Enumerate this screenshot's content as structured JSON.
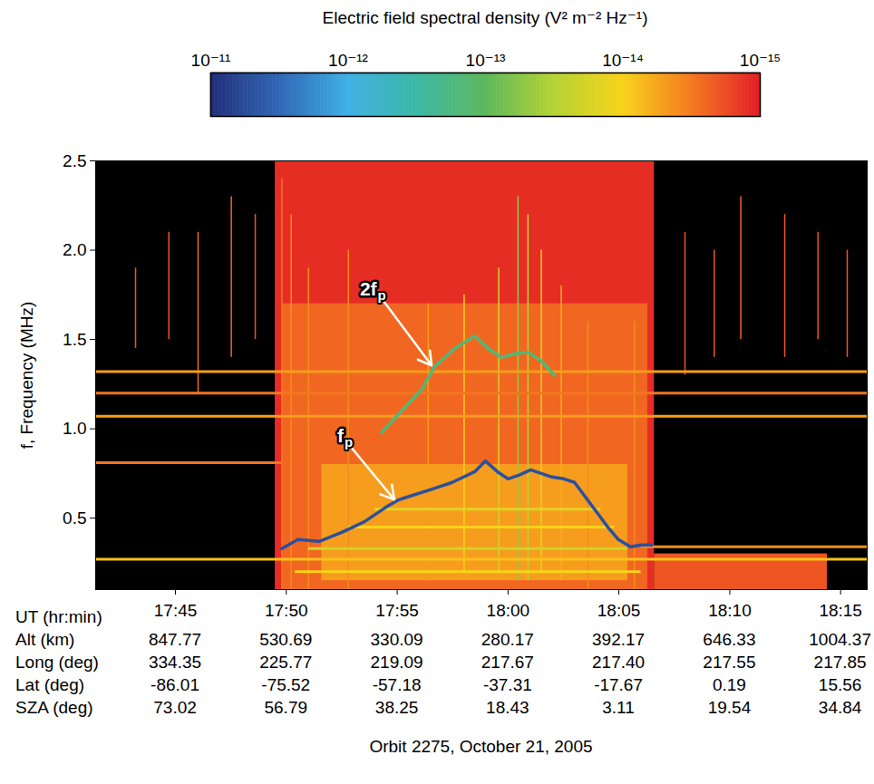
{
  "chart_data": {
    "type": "spectrogram",
    "caption": "Orbit 2275, October 21, 2005",
    "x_label": "UT (hr:min)",
    "y_label": "f, Frequency (MHz)",
    "xlim": [
      17.69,
      18.27
    ],
    "xticks": [
      {
        "value": 17.75,
        "label": "17:45"
      },
      {
        "value": 17.8333,
        "label": "17:50"
      },
      {
        "value": 17.9167,
        "label": "17:55"
      },
      {
        "value": 18,
        "label": "18:00"
      },
      {
        "value": 18.0833,
        "label": "18:05"
      },
      {
        "value": 18.1667,
        "label": "18:10"
      },
      {
        "value": 18.25,
        "label": "18:15"
      }
    ],
    "ylim": [
      0.1,
      2.5
    ],
    "yticks": [
      0.5,
      {
        "value": 1,
        "label": "1.0"
      },
      1.5,
      {
        "value": 2,
        "label": "2.0"
      },
      2.5
    ],
    "x_rows": [
      {
        "name": "Alt (km)",
        "labels": [
          "847.77",
          "530.69",
          "330.09",
          "280.17",
          "392.17",
          "646.33",
          "1004.37"
        ]
      },
      {
        "name": "Long (deg)",
        "labels": [
          "334.35",
          "225.77",
          "219.09",
          "217.67",
          "217.40",
          "217.55",
          "217.85"
        ]
      },
      {
        "name": "Lat (deg)",
        "labels": [
          "-86.01",
          "-75.52",
          "-57.18",
          "-37.31",
          "-17.67",
          "0.19",
          "15.56"
        ]
      },
      {
        "name": "SZA (deg)",
        "labels": [
          "73.02",
          "56.79",
          "38.25",
          "18.43",
          "3.11",
          "19.54",
          "34.84"
        ]
      }
    ],
    "colorbar": {
      "label": "Electric field spectral density (V² m⁻² Hz⁻¹)",
      "lim": [
        1e-11,
        1e-15
      ],
      "ticks": [
        {
          "value": 1e-11,
          "label": "10⁻¹¹"
        },
        {
          "value": 1e-12,
          "label": "10⁻¹²"
        },
        {
          "value": 1e-13,
          "label": "10⁻¹³"
        },
        {
          "value": 1e-14,
          "label": "10⁻¹⁴"
        },
        {
          "value": 1e-15,
          "label": "10⁻¹⁵"
        }
      ],
      "log": true
    },
    "regions": [
      {
        "x0": 17.825,
        "x1": 18.11,
        "y0": 0.1,
        "y1": 2.5,
        "value": 1.2e-15
      },
      {
        "x0": 17.83,
        "x1": 18.105,
        "y0": 0.1,
        "y1": 1.7,
        "value": 2.5e-15
      },
      {
        "x0": 17.86,
        "x1": 18.09,
        "y0": 0.15,
        "y1": 0.8,
        "value": 5e-15
      },
      {
        "x0": 18.11,
        "x1": 18.24,
        "y0": 0.1,
        "y1": 0.3,
        "value": 2e-15
      }
    ],
    "streaks": [
      {
        "x": 17.72,
        "y0": 1.45,
        "y1": 1.9,
        "value": 2e-15
      },
      {
        "x": 17.745,
        "y0": 1.5,
        "y1": 2.1,
        "value": 2e-15
      },
      {
        "x": 17.767,
        "y0": 1.2,
        "y1": 2.1,
        "value": 2.5e-15
      },
      {
        "x": 17.792,
        "y0": 1.4,
        "y1": 2.3,
        "value": 2.5e-15
      },
      {
        "x": 17.81,
        "y0": 1.5,
        "y1": 2.2,
        "value": 2e-15
      },
      {
        "x": 17.83,
        "y0": 0.1,
        "y1": 2.4,
        "value": 3e-15
      },
      {
        "x": 17.837,
        "y0": 0.1,
        "y1": 2.2,
        "value": 4e-15
      },
      {
        "x": 17.85,
        "y0": 0.1,
        "y1": 1.9,
        "value": 4e-15
      },
      {
        "x": 17.88,
        "y0": 0.1,
        "y1": 2.0,
        "value": 4e-15
      },
      {
        "x": 17.94,
        "y0": 0.15,
        "y1": 1.7,
        "value": 5e-15
      },
      {
        "x": 17.967,
        "y0": 0.2,
        "y1": 1.75,
        "value": 1e-14
      },
      {
        "x": 17.993,
        "y0": 0.2,
        "y1": 1.9,
        "value": 2e-14
      },
      {
        "x": 18.0075,
        "y0": 0.15,
        "y1": 2.3,
        "value": 5e-14
      },
      {
        "x": 18.015,
        "y0": 0.15,
        "y1": 2.2,
        "value": 3e-14
      },
      {
        "x": 18.025,
        "y0": 0.2,
        "y1": 2.0,
        "value": 1.5e-14
      },
      {
        "x": 18.04,
        "y0": 0.15,
        "y1": 1.8,
        "value": 6e-15
      },
      {
        "x": 18.06,
        "y0": 0.1,
        "y1": 1.6,
        "value": 4e-15
      },
      {
        "x": 18.095,
        "y0": 0.1,
        "y1": 1.6,
        "value": 4e-15
      },
      {
        "x": 18.133,
        "y0": 1.3,
        "y1": 2.1,
        "value": 2e-15
      },
      {
        "x": 18.155,
        "y0": 1.4,
        "y1": 2.0,
        "value": 2e-15
      },
      {
        "x": 18.175,
        "y0": 1.5,
        "y1": 2.3,
        "value": 2.5e-15
      },
      {
        "x": 18.208,
        "y0": 1.4,
        "y1": 2.2,
        "value": 2e-15
      },
      {
        "x": 18.233,
        "y0": 1.5,
        "y1": 2.1,
        "value": 2e-15
      },
      {
        "x": 18.255,
        "y0": 1.4,
        "y1": 2.0,
        "value": 2e-15
      }
    ],
    "hlines": [
      {
        "y": 1.32,
        "x0": 17.69,
        "x1": 18.27,
        "value": 5e-15
      },
      {
        "y": 1.2,
        "x0": 17.69,
        "x1": 18.27,
        "value": 3e-15
      },
      {
        "y": 1.07,
        "x0": 17.69,
        "x1": 18.27,
        "value": 5e-15
      },
      {
        "y": 0.81,
        "x0": 17.69,
        "x1": 17.83,
        "value": 3e-15
      },
      {
        "y": 0.27,
        "x0": 17.69,
        "x1": 18.27,
        "value": 8e-15
      },
      {
        "y": 0.34,
        "x0": 18.1,
        "x1": 18.27,
        "value": 4e-15
      },
      {
        "y": 0.55,
        "x0": 17.9,
        "x1": 18.07,
        "value": 1.5e-14
      },
      {
        "y": 0.45,
        "x0": 17.88,
        "x1": 18.08,
        "value": 1e-14
      },
      {
        "y": 0.33,
        "x0": 17.85,
        "x1": 18.09,
        "value": 2e-14
      },
      {
        "y": 0.2,
        "x0": 17.84,
        "x1": 18.1,
        "value": 1e-14
      }
    ],
    "traces": [
      {
        "value": 5e-12,
        "points": [
          [
            17.83,
            0.33
          ],
          [
            17.842,
            0.38
          ],
          [
            17.858,
            0.37
          ],
          [
            17.875,
            0.42
          ],
          [
            17.892,
            0.48
          ],
          [
            17.908,
            0.56
          ],
          [
            17.917,
            0.6
          ],
          [
            17.925,
            0.62
          ],
          [
            17.942,
            0.66
          ],
          [
            17.958,
            0.7
          ],
          [
            17.975,
            0.76
          ],
          [
            17.983,
            0.82
          ],
          [
            17.992,
            0.76
          ],
          [
            18.0,
            0.72
          ],
          [
            18.008,
            0.74
          ],
          [
            18.017,
            0.77
          ],
          [
            18.033,
            0.73
          ],
          [
            18.042,
            0.72
          ],
          [
            18.05,
            0.7
          ],
          [
            18.058,
            0.62
          ],
          [
            18.067,
            0.53
          ],
          [
            18.075,
            0.45
          ],
          [
            18.083,
            0.38
          ],
          [
            18.092,
            0.34
          ],
          [
            18.1,
            0.35
          ],
          [
            18.108,
            0.35
          ]
        ]
      },
      {
        "value": 1.5e-13,
        "points": [
          [
            17.905,
            0.98
          ],
          [
            17.92,
            1.1
          ],
          [
            17.935,
            1.22
          ],
          [
            17.945,
            1.35
          ],
          [
            17.96,
            1.45
          ],
          [
            17.975,
            1.52
          ],
          [
            17.985,
            1.45
          ],
          [
            17.995,
            1.4
          ],
          [
            18.005,
            1.42
          ],
          [
            18.015,
            1.43
          ],
          [
            18.025,
            1.38
          ],
          [
            18.035,
            1.3
          ]
        ]
      }
    ],
    "annotations": [
      {
        "text": "2f",
        "subscript": "p",
        "x": 17.9,
        "y": 1.78,
        "tip_x": 17.943,
        "tip_y": 1.35
      },
      {
        "text": "f",
        "subscript": "p",
        "x": 17.875,
        "y": 0.96,
        "tip_x": 17.915,
        "tip_y": 0.6
      }
    ]
  }
}
